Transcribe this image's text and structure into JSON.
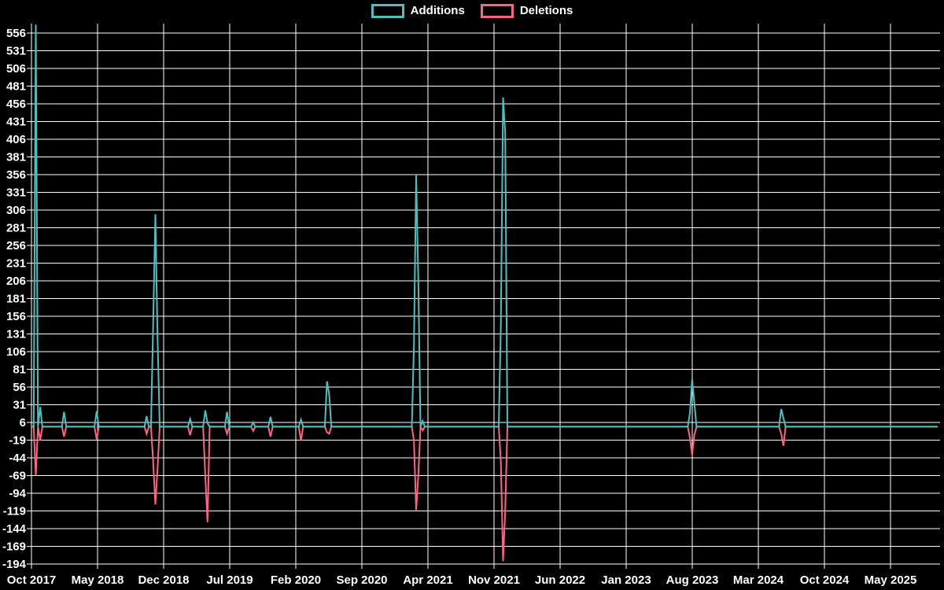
{
  "colors": {
    "background": "#000000",
    "grid": "#ffffff",
    "text": "#ffffff",
    "additions": "#4bc0c0",
    "deletions": "#ff6384"
  },
  "legend": {
    "items": [
      {
        "label": "Additions",
        "color": "#4bc0c0"
      },
      {
        "label": "Deletions",
        "color": "#ff6384"
      }
    ]
  },
  "chart_data": {
    "type": "line",
    "title": "",
    "xlabel": "",
    "ylabel": "",
    "grid": true,
    "legend_position": "top-center",
    "x_tick_labels": [
      "Oct 2017",
      "May 2018",
      "Dec 2018",
      "Jul 2019",
      "Feb 2020",
      "Sep 2020",
      "Apr 2021",
      "Nov 2021",
      "Jun 2022",
      "Jan 2023",
      "Aug 2023",
      "Mar 2024",
      "Oct 2024",
      "May 2025"
    ],
    "y_ticks": [
      556,
      531,
      506,
      481,
      456,
      431,
      406,
      381,
      356,
      331,
      306,
      281,
      256,
      231,
      206,
      181,
      156,
      131,
      106,
      81,
      56,
      31,
      6,
      -19,
      -44,
      -69,
      -94,
      -119,
      -144,
      -169,
      -194
    ],
    "ylim": [
      -199,
      569
    ],
    "x_unit": "week",
    "weeks_total": 418,
    "weeks_per_x_tick": 30.43,
    "baseline_value": 0,
    "note": "Weekly code-frequency style chart; both series are 0 except at the listed [week_index, value] spike events; week 0 = Oct 2017",
    "series": [
      {
        "name": "Additions",
        "color": "#4bc0c0",
        "events": [
          [
            2,
            568
          ],
          [
            4,
            28
          ],
          [
            15,
            21
          ],
          [
            30,
            22
          ],
          [
            53,
            15
          ],
          [
            56,
            145
          ],
          [
            57,
            300
          ],
          [
            58,
            130
          ],
          [
            73,
            11
          ],
          [
            80,
            23
          ],
          [
            81,
            5
          ],
          [
            90,
            21
          ],
          [
            102,
            6
          ],
          [
            110,
            14
          ],
          [
            124,
            10
          ],
          [
            136,
            64
          ],
          [
            137,
            45
          ],
          [
            176,
            115
          ],
          [
            177,
            355
          ],
          [
            178,
            210
          ],
          [
            180,
            8
          ],
          [
            216,
            145
          ],
          [
            217,
            465
          ],
          [
            218,
            415
          ],
          [
            303,
            20
          ],
          [
            304,
            67
          ],
          [
            305,
            34
          ],
          [
            345,
            25
          ],
          [
            346,
            12
          ]
        ]
      },
      {
        "name": "Deletions",
        "color": "#ff6384",
        "events": [
          [
            2,
            -69
          ],
          [
            4,
            -19
          ],
          [
            15,
            -14
          ],
          [
            30,
            -18
          ],
          [
            53,
            -10
          ],
          [
            56,
            -49
          ],
          [
            57,
            -110
          ],
          [
            58,
            -60
          ],
          [
            73,
            -12
          ],
          [
            80,
            -70
          ],
          [
            81,
            -135
          ],
          [
            90,
            -10
          ],
          [
            102,
            -6
          ],
          [
            110,
            -14
          ],
          [
            124,
            -20
          ],
          [
            136,
            -8
          ],
          [
            137,
            -10
          ],
          [
            176,
            -20
          ],
          [
            177,
            -118
          ],
          [
            178,
            -70
          ],
          [
            180,
            -5
          ],
          [
            216,
            -50
          ],
          [
            217,
            -190
          ],
          [
            218,
            -120
          ],
          [
            303,
            -16
          ],
          [
            304,
            -40
          ],
          [
            305,
            -12
          ],
          [
            345,
            -10
          ],
          [
            346,
            -27
          ]
        ]
      }
    ]
  }
}
